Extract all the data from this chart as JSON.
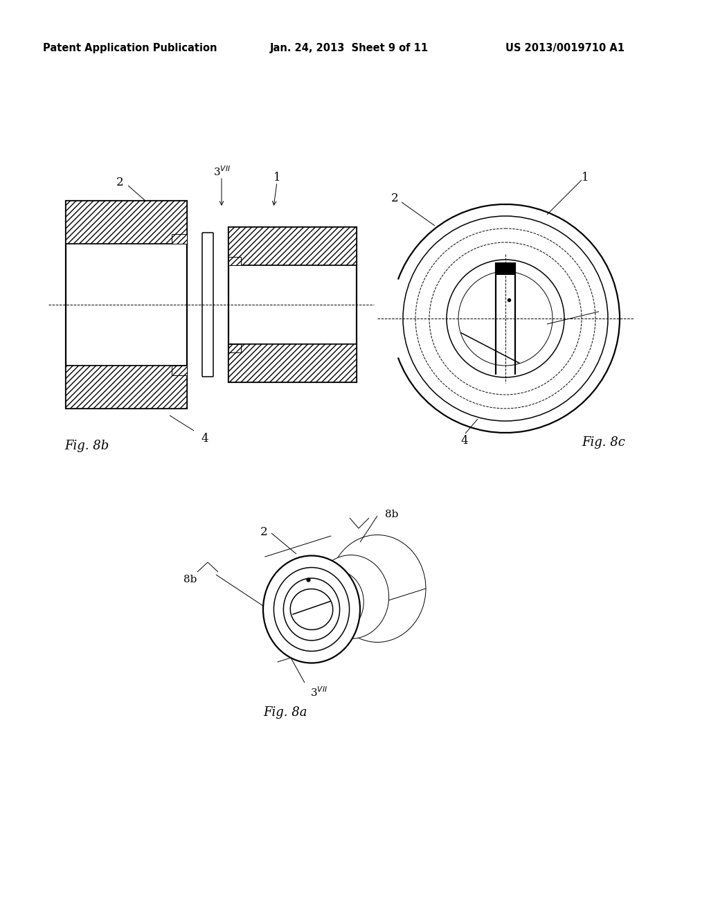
{
  "background_color": "#ffffff",
  "header_left": "Patent Application Publication",
  "header_center": "Jan. 24, 2013  Sheet 9 of 11",
  "header_right": "US 2013/0019710 A1",
  "line_color": "#000000"
}
